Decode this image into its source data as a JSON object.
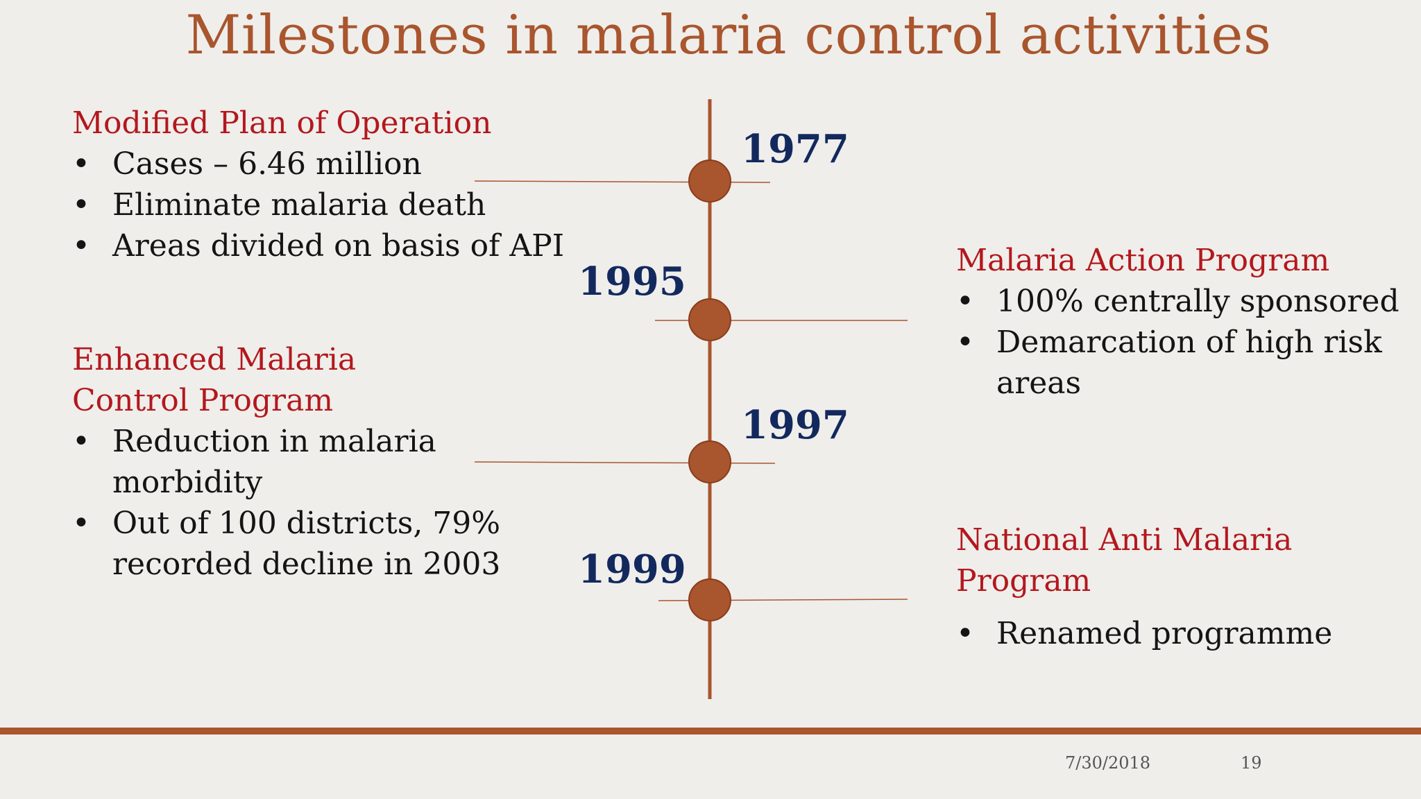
{
  "slide": {
    "title": "Milestones in malaria control activities",
    "accent_color": "#a9552d",
    "heading_color": "#b3181d",
    "year_color": "#13295e"
  },
  "timeline": {
    "years": [
      "1977",
      "1995",
      "1997",
      "1999"
    ]
  },
  "left": {
    "block1": {
      "heading": "Modified Plan of Operation",
      "bullets": [
        "Cases – 6.46 million",
        "Eliminate malaria death",
        "Areas divided on basis of API"
      ]
    },
    "block2": {
      "heading_line1": "Enhanced Malaria",
      "heading_line2": "Control Program",
      "bullets": [
        "Reduction in malaria morbidity",
        "Out of 100 districts, 79% recorded decline in 2003"
      ]
    }
  },
  "right": {
    "block1": {
      "heading": "Malaria Action Program",
      "bullets": [
        "100% centrally sponsored",
        "Demarcation of high risk areas"
      ]
    },
    "block2": {
      "heading_line1": "National Anti Malaria",
      "heading_line2": "Program",
      "bullets": [
        "Renamed programme"
      ]
    }
  },
  "footer": {
    "date": "7/30/2018",
    "page": "19"
  }
}
